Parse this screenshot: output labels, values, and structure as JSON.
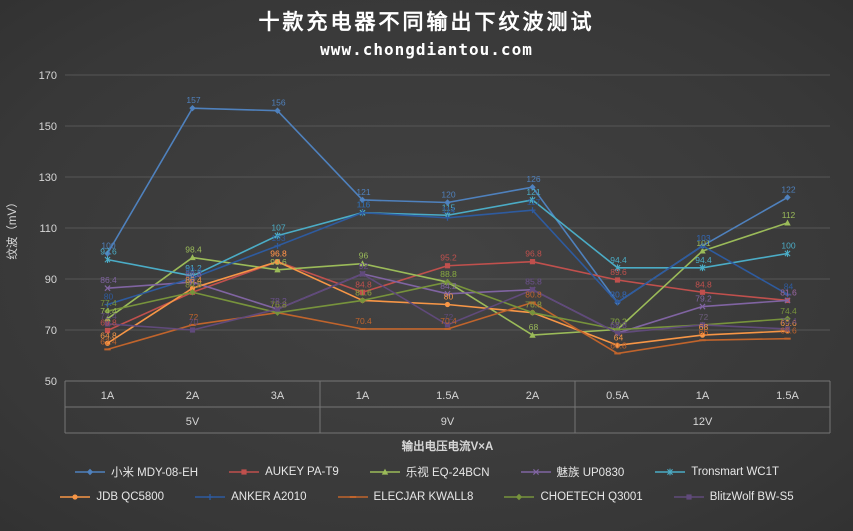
{
  "chart_data": {
    "type": "line",
    "title": "十款充电器不同输出下纹波测试",
    "subtitle": "www.chongdiantou.com",
    "ylabel": "纹波（mV）",
    "xlabel": "输出电压电流V×A",
    "ylim": [
      50,
      170
    ],
    "ytick_step": 20,
    "grid": true,
    "legend_position": "bottom",
    "legend_rows": [
      5,
      5
    ],
    "categories": [
      "1A",
      "2A",
      "3A",
      "1A",
      "1.5A",
      "2A",
      "0.5A",
      "1A",
      "1.5A"
    ],
    "groups": [
      {
        "label": "5V",
        "span": 3
      },
      {
        "label": "9V",
        "span": 3
      },
      {
        "label": "12V",
        "span": 3
      }
    ],
    "series": [
      {
        "name": "小米 MDY-08-EH",
        "color": "#4f81bd",
        "marker": "diamond",
        "values": [
          100,
          157,
          156,
          121,
          120,
          126,
          80.8,
          103,
          122
        ]
      },
      {
        "name": "AUKEY PA-T9",
        "color": "#c0504d",
        "marker": "square",
        "values": [
          69.8,
          84.8,
          96.8,
          84.8,
          95.2,
          96.8,
          89.6,
          84.8,
          81.6
        ]
      },
      {
        "name": "乐视 EQ-24BCN",
        "color": "#9bbb59",
        "marker": "triangle",
        "values": [
          74.4,
          98.4,
          93.6,
          96,
          88.8,
          68,
          70.2,
          101,
          112
        ]
      },
      {
        "name": "魅族 UP0830",
        "color": "#8064a2",
        "marker": "x",
        "values": [
          86.4,
          88.8,
          78.2,
          92,
          84.2,
          85.8,
          68.8,
          79.2,
          81.6
        ]
      },
      {
        "name": "Tronsmart WC1T",
        "color": "#4bacc6",
        "marker": "asterisk",
        "values": [
          97.6,
          91.2,
          107,
          116,
          115,
          121,
          94.4,
          94.4,
          100
        ]
      },
      {
        "name": "JDB QC5800",
        "color": "#f79646",
        "marker": "circle",
        "values": [
          64.8,
          86.4,
          96.8,
          81.6,
          80,
          76.8,
          64,
          68,
          69.6
        ]
      },
      {
        "name": "ANKER A2010",
        "color": "#2e5b9f",
        "marker": "plus",
        "values": [
          80,
          90.4,
          103,
          116,
          114,
          117,
          80.8,
          103,
          84
        ]
      },
      {
        "name": "ELECJAR KWALL8",
        "color": "#c0642c",
        "marker": "dash",
        "values": [
          62.4,
          72,
          76.8,
          70.4,
          70.4,
          80.8,
          60.8,
          66,
          66.6
        ]
      },
      {
        "name": "CHOETECH Q3001",
        "color": "#77933c",
        "marker": "diamond",
        "values": [
          77.4,
          84.8,
          76.8,
          81.6,
          88.8,
          76.8,
          70.2,
          72,
          74.4
        ]
      },
      {
        "name": "BlitzWolf BW-S5",
        "color": "#604a7b",
        "marker": "square",
        "values": [
          72.4,
          70,
          78.2,
          92,
          72,
          85.8,
          68.8,
          72,
          70.4
        ]
      }
    ],
    "colors": {
      "background": "#3a3a3a",
      "gridline": "#565656",
      "axis_band_line": "#757575",
      "text": "#d6d6d6",
      "title_text": "#ffffff"
    }
  }
}
